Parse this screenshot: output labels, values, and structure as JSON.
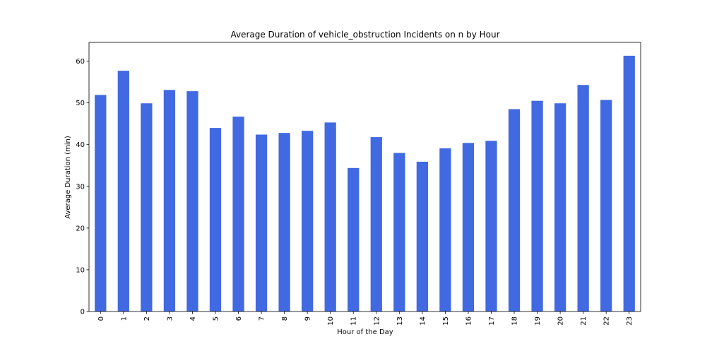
{
  "chart_data": {
    "type": "bar",
    "title": "Average Duration of vehicle_obstruction Incidents on n by Hour",
    "xlabel": "Hour of the Day",
    "ylabel": "Average Duration (min)",
    "categories": [
      "0",
      "1",
      "2",
      "3",
      "4",
      "5",
      "6",
      "7",
      "8",
      "9",
      "10",
      "11",
      "12",
      "13",
      "14",
      "15",
      "16",
      "17",
      "18",
      "19",
      "20",
      "21",
      "22",
      "23"
    ],
    "values": [
      51.9,
      57.7,
      49.9,
      53.1,
      52.8,
      44.0,
      46.7,
      42.4,
      42.8,
      43.3,
      45.3,
      34.4,
      41.8,
      38.0,
      35.9,
      39.1,
      40.4,
      40.9,
      48.5,
      50.5,
      49.9,
      54.3,
      50.7,
      61.3
    ],
    "ylim": [
      0,
      64.5
    ],
    "yticks": [
      0,
      10,
      20,
      30,
      40,
      50,
      60
    ],
    "bar_color": "#4169e1",
    "grid": false,
    "legend": "none"
  }
}
